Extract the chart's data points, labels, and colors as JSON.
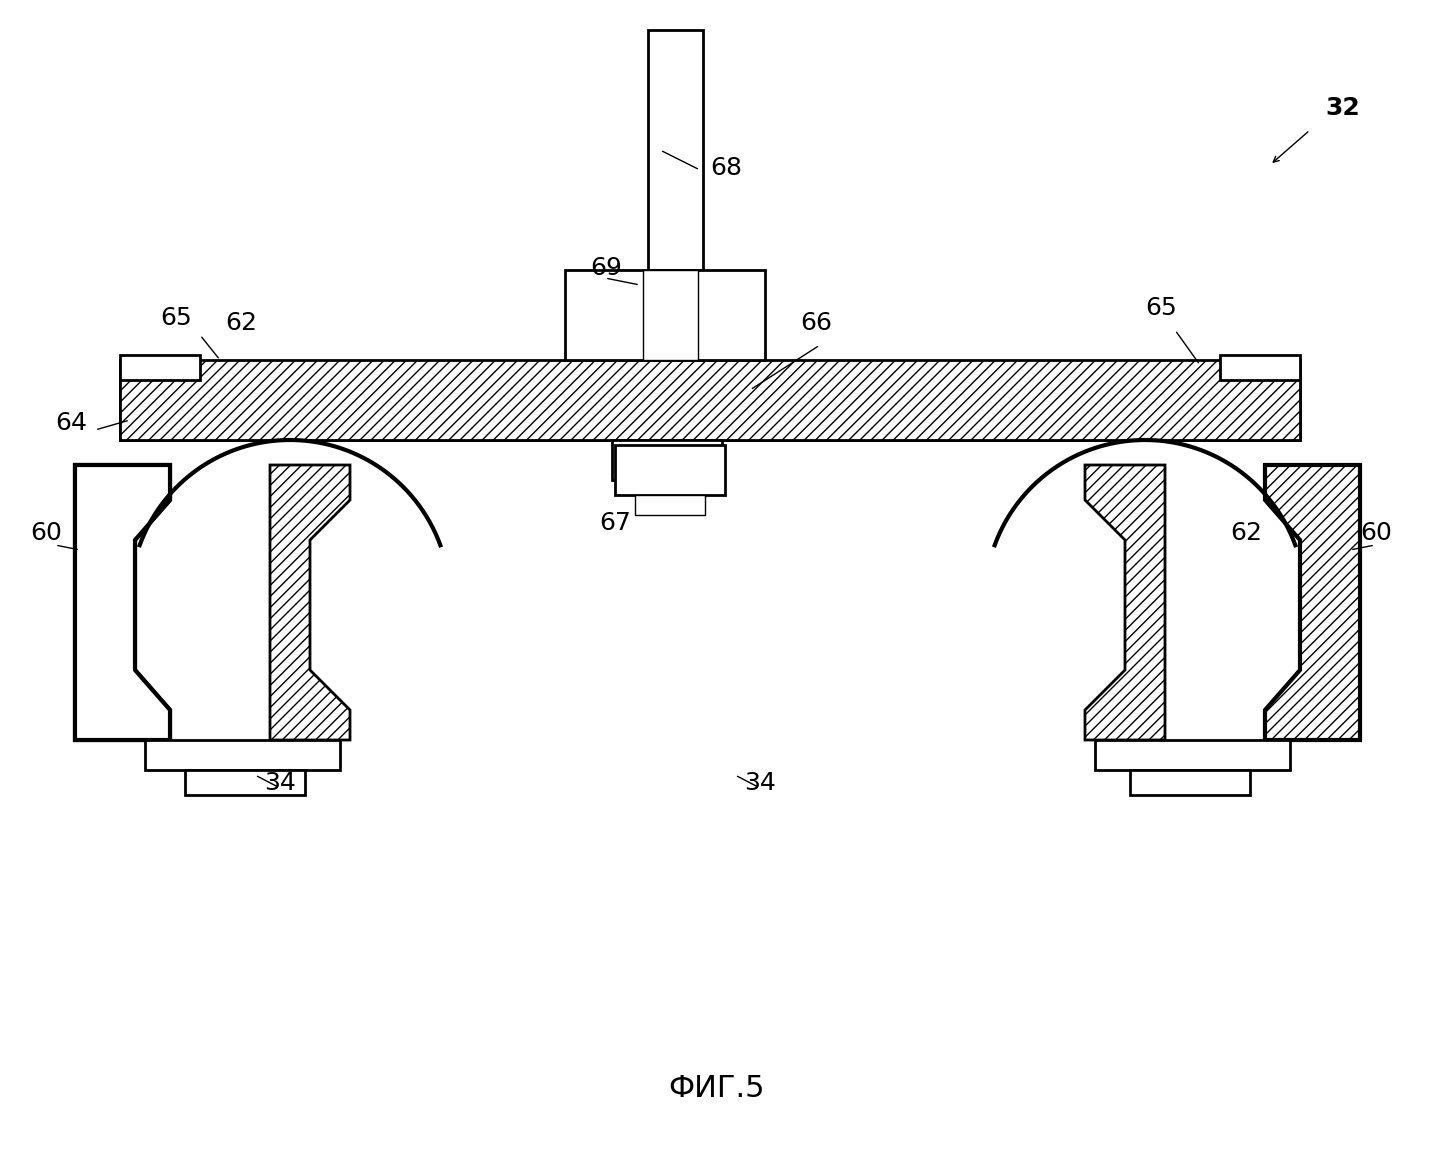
{
  "title": "ФИГ.5",
  "label_32": "32",
  "label_34": "34",
  "label_60": "60",
  "label_62": "62",
  "label_64": "64",
  "label_65": "65",
  "label_66": "66",
  "label_67": "67",
  "label_68": "68",
  "label_69": "69",
  "bg_color": "#ffffff",
  "line_color": "#000000",
  "hatch_color": "#000000",
  "lw_thin": 1.0,
  "lw_medium": 1.8,
  "lw_thick": 2.5
}
